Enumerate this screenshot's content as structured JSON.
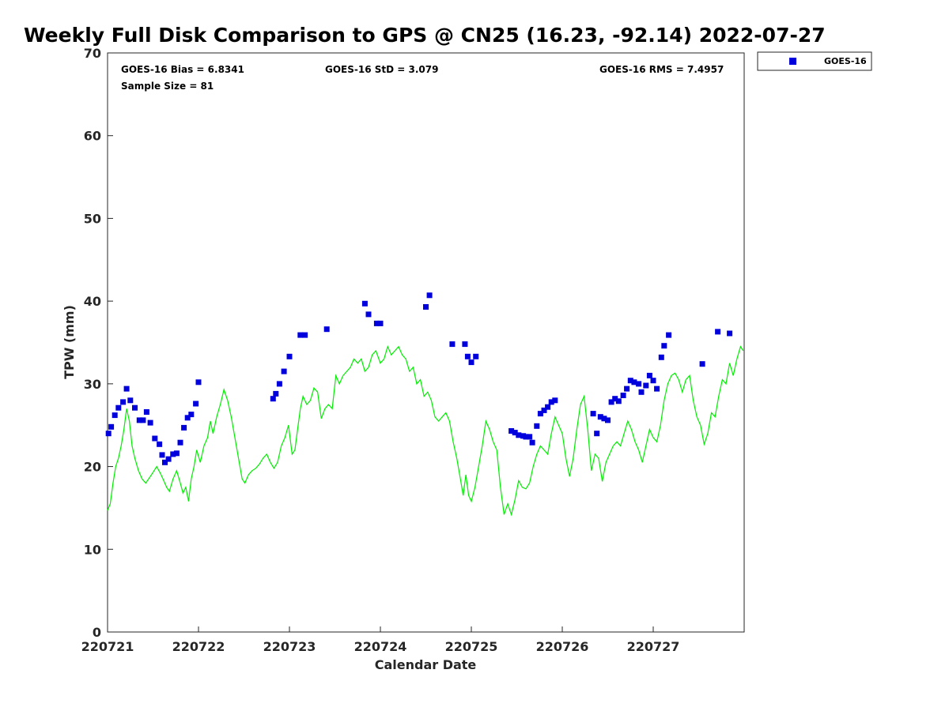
{
  "title": "Weekly Full Disk Comparison to GPS @ CN25 (16.23, -92.14) 2022-07-27",
  "stats": {
    "bias": "GOES-16 Bias = 6.8341",
    "std": "GOES-16 StD = 3.079",
    "rms": "GOES-16 RMS = 7.4957",
    "sample": "Sample Size = 81"
  },
  "legend": {
    "label": "GOES-16"
  },
  "colors": {
    "goes": "#0000dd",
    "gps": "#00ee00",
    "axis": "#262626"
  },
  "chart_data": {
    "type": "scatter",
    "title": "Weekly Full Disk Comparison to GPS @ CN25 (16.23, -92.14) 2022-07-27",
    "xlabel": "Calendar Date",
    "ylabel": "TPW (mm)",
    "xlim": [
      220721,
      220728
    ],
    "ylim": [
      0,
      70
    ],
    "yticks": [
      0,
      10,
      20,
      30,
      40,
      50,
      60,
      70
    ],
    "xticks": [
      {
        "value": 220721,
        "label": "220721"
      },
      {
        "value": 220722,
        "label": "220722"
      },
      {
        "value": 220723,
        "label": "220723"
      },
      {
        "value": 220724,
        "label": "220724"
      },
      {
        "value": 220725,
        "label": "220725"
      },
      {
        "value": 220726,
        "label": "220726"
      },
      {
        "value": 220727,
        "label": "220727"
      }
    ],
    "legend_position": "top-right",
    "grid": false,
    "series": [
      {
        "name": "GOES-16",
        "marker": "square",
        "color": "#0000dd",
        "points": [
          [
            220721.01,
            24.0
          ],
          [
            220721.04,
            24.8
          ],
          [
            220721.08,
            26.2
          ],
          [
            220721.12,
            27.1
          ],
          [
            220721.17,
            27.8
          ],
          [
            220721.21,
            29.4
          ],
          [
            220721.25,
            28.0
          ],
          [
            220721.3,
            27.1
          ],
          [
            220721.35,
            25.6
          ],
          [
            220721.39,
            25.6
          ],
          [
            220721.43,
            26.6
          ],
          [
            220721.47,
            25.3
          ],
          [
            220721.52,
            23.4
          ],
          [
            220721.57,
            22.7
          ],
          [
            220721.6,
            21.4
          ],
          [
            220721.63,
            20.5
          ],
          [
            220721.67,
            20.9
          ],
          [
            220721.72,
            21.5
          ],
          [
            220721.76,
            21.6
          ],
          [
            220721.8,
            22.9
          ],
          [
            220721.84,
            24.7
          ],
          [
            220721.88,
            25.9
          ],
          [
            220721.92,
            26.3
          ],
          [
            220721.97,
            27.6
          ],
          [
            220722.0,
            30.2
          ],
          [
            220722.82,
            28.2
          ],
          [
            220722.85,
            28.8
          ],
          [
            220722.89,
            30.0
          ],
          [
            220722.94,
            31.5
          ],
          [
            220723.0,
            33.3
          ],
          [
            220723.12,
            35.9
          ],
          [
            220723.17,
            35.9
          ],
          [
            220723.41,
            36.6
          ],
          [
            220723.83,
            39.7
          ],
          [
            220723.87,
            38.4
          ],
          [
            220723.96,
            37.3
          ],
          [
            220724.0,
            37.3
          ],
          [
            220724.5,
            39.3
          ],
          [
            220724.54,
            40.7
          ],
          [
            220724.79,
            34.8
          ],
          [
            220724.93,
            34.8
          ],
          [
            220724.96,
            33.3
          ],
          [
            220725.0,
            32.6
          ],
          [
            220725.05,
            33.3
          ],
          [
            220725.44,
            24.3
          ],
          [
            220725.48,
            24.1
          ],
          [
            220725.52,
            23.8
          ],
          [
            220725.57,
            23.7
          ],
          [
            220725.6,
            23.6
          ],
          [
            220725.64,
            23.6
          ],
          [
            220725.67,
            22.9
          ],
          [
            220725.72,
            24.9
          ],
          [
            220725.76,
            26.4
          ],
          [
            220725.8,
            26.8
          ],
          [
            220725.84,
            27.2
          ],
          [
            220725.88,
            27.8
          ],
          [
            220725.92,
            28.0
          ],
          [
            220726.34,
            26.4
          ],
          [
            220726.38,
            24.0
          ],
          [
            220726.42,
            26.0
          ],
          [
            220726.46,
            25.8
          ],
          [
            220726.5,
            25.6
          ],
          [
            220726.54,
            27.8
          ],
          [
            220726.58,
            28.2
          ],
          [
            220726.62,
            27.9
          ],
          [
            220726.67,
            28.6
          ],
          [
            220726.71,
            29.4
          ],
          [
            220726.75,
            30.4
          ],
          [
            220726.79,
            30.2
          ],
          [
            220726.84,
            30.0
          ],
          [
            220726.87,
            29.0
          ],
          [
            220726.92,
            29.8
          ],
          [
            220726.96,
            31.0
          ],
          [
            220727.0,
            30.4
          ],
          [
            220727.04,
            29.4
          ],
          [
            220727.09,
            33.2
          ],
          [
            220727.12,
            34.6
          ],
          [
            220727.17,
            35.9
          ],
          [
            220727.54,
            32.4
          ],
          [
            220727.71,
            36.3
          ],
          [
            220727.84,
            36.1
          ]
        ]
      },
      {
        "name": "GPS",
        "marker": "line",
        "color": "#00ee00",
        "points": [
          [
            220721.0,
            14.7
          ],
          [
            220721.03,
            15.5
          ],
          [
            220721.06,
            18.0
          ],
          [
            220721.09,
            20.0
          ],
          [
            220721.12,
            21.0
          ],
          [
            220721.15,
            22.5
          ],
          [
            220721.18,
            24.5
          ],
          [
            220721.21,
            27.0
          ],
          [
            220721.24,
            25.5
          ],
          [
            220721.27,
            22.5
          ],
          [
            220721.3,
            21.0
          ],
          [
            220721.34,
            19.5
          ],
          [
            220721.38,
            18.5
          ],
          [
            220721.42,
            18.0
          ],
          [
            220721.47,
            18.8
          ],
          [
            220721.5,
            19.3
          ],
          [
            220721.54,
            20.0
          ],
          [
            220721.58,
            19.2
          ],
          [
            220721.61,
            18.5
          ],
          [
            220721.65,
            17.5
          ],
          [
            220721.68,
            17.0
          ],
          [
            220721.72,
            18.5
          ],
          [
            220721.76,
            19.5
          ],
          [
            220721.8,
            18.0
          ],
          [
            220721.83,
            16.8
          ],
          [
            220721.86,
            17.5
          ],
          [
            220721.89,
            15.8
          ],
          [
            220721.92,
            18.5
          ],
          [
            220721.95,
            20.0
          ],
          [
            220721.98,
            22.0
          ],
          [
            220722.02,
            20.5
          ],
          [
            220722.06,
            22.5
          ],
          [
            220722.1,
            23.5
          ],
          [
            220722.13,
            25.5
          ],
          [
            220722.16,
            24.0
          ],
          [
            220722.2,
            26.0
          ],
          [
            220722.24,
            27.5
          ],
          [
            220722.28,
            29.3
          ],
          [
            220722.32,
            28.0
          ],
          [
            220722.36,
            26.0
          ],
          [
            220722.4,
            23.5
          ],
          [
            220722.44,
            21.0
          ],
          [
            220722.48,
            18.5
          ],
          [
            220722.51,
            18.0
          ],
          [
            220722.55,
            19.0
          ],
          [
            220722.59,
            19.5
          ],
          [
            220722.63,
            19.8
          ],
          [
            220722.67,
            20.3
          ],
          [
            220722.71,
            21.0
          ],
          [
            220722.75,
            21.5
          ],
          [
            220722.79,
            20.5
          ],
          [
            220722.83,
            19.8
          ],
          [
            220722.87,
            20.5
          ],
          [
            220722.91,
            22.5
          ],
          [
            220722.95,
            23.5
          ],
          [
            220722.99,
            25.0
          ],
          [
            220723.03,
            21.5
          ],
          [
            220723.06,
            22.0
          ],
          [
            220723.09,
            24.5
          ],
          [
            220723.12,
            27.0
          ],
          [
            220723.15,
            28.5
          ],
          [
            220723.19,
            27.5
          ],
          [
            220723.23,
            28.0
          ],
          [
            220723.27,
            29.5
          ],
          [
            220723.31,
            29.0
          ],
          [
            220723.35,
            25.8
          ],
          [
            220723.39,
            27.0
          ],
          [
            220723.43,
            27.5
          ],
          [
            220723.47,
            27.0
          ],
          [
            220723.51,
            31.0
          ],
          [
            220723.55,
            30.0
          ],
          [
            220723.59,
            31.0
          ],
          [
            220723.63,
            31.5
          ],
          [
            220723.67,
            32.0
          ],
          [
            220723.71,
            33.0
          ],
          [
            220723.75,
            32.5
          ],
          [
            220723.79,
            33.0
          ],
          [
            220723.83,
            31.5
          ],
          [
            220723.87,
            32.0
          ],
          [
            220723.91,
            33.5
          ],
          [
            220723.95,
            34.0
          ],
          [
            220724.0,
            32.5
          ],
          [
            220724.04,
            33.0
          ],
          [
            220724.08,
            34.5
          ],
          [
            220724.12,
            33.5
          ],
          [
            220724.16,
            34.0
          ],
          [
            220724.2,
            34.5
          ],
          [
            220724.24,
            33.5
          ],
          [
            220724.28,
            33.0
          ],
          [
            220724.32,
            31.5
          ],
          [
            220724.36,
            32.0
          ],
          [
            220724.4,
            30.0
          ],
          [
            220724.44,
            30.5
          ],
          [
            220724.48,
            28.5
          ],
          [
            220724.52,
            29.0
          ],
          [
            220724.56,
            28.0
          ],
          [
            220724.6,
            26.0
          ],
          [
            220724.64,
            25.5
          ],
          [
            220724.68,
            26.0
          ],
          [
            220724.72,
            26.5
          ],
          [
            220724.76,
            25.5
          ],
          [
            220724.8,
            23.0
          ],
          [
            220724.84,
            21.0
          ],
          [
            220724.88,
            18.5
          ],
          [
            220724.91,
            16.5
          ],
          [
            220724.94,
            19.0
          ],
          [
            220724.97,
            16.5
          ],
          [
            220725.0,
            15.8
          ],
          [
            220725.04,
            17.5
          ],
          [
            220725.08,
            20.0
          ],
          [
            220725.12,
            22.5
          ],
          [
            220725.16,
            25.5
          ],
          [
            220725.2,
            24.5
          ],
          [
            220725.24,
            23.0
          ],
          [
            220725.28,
            22.0
          ],
          [
            220725.32,
            17.5
          ],
          [
            220725.36,
            14.2
          ],
          [
            220725.4,
            15.5
          ],
          [
            220725.44,
            14.2
          ],
          [
            220725.48,
            16.0
          ],
          [
            220725.52,
            18.3
          ],
          [
            220725.56,
            17.5
          ],
          [
            220725.6,
            17.3
          ],
          [
            220725.64,
            18.0
          ],
          [
            220725.68,
            20.0
          ],
          [
            220725.72,
            21.5
          ],
          [
            220725.76,
            22.5
          ],
          [
            220725.8,
            22.0
          ],
          [
            220725.84,
            21.5
          ],
          [
            220725.88,
            24.0
          ],
          [
            220725.92,
            26.0
          ],
          [
            220725.96,
            25.0
          ],
          [
            220726.0,
            24.0
          ],
          [
            220726.04,
            21.0
          ],
          [
            220726.08,
            18.8
          ],
          [
            220726.12,
            21.0
          ],
          [
            220726.16,
            24.5
          ],
          [
            220726.2,
            27.5
          ],
          [
            220726.24,
            28.5
          ],
          [
            220726.28,
            24.5
          ],
          [
            220726.32,
            19.5
          ],
          [
            220726.36,
            21.5
          ],
          [
            220726.4,
            21.0
          ],
          [
            220726.44,
            18.2
          ],
          [
            220726.48,
            20.5
          ],
          [
            220726.52,
            21.5
          ],
          [
            220726.56,
            22.5
          ],
          [
            220726.6,
            23.0
          ],
          [
            220726.64,
            22.5
          ],
          [
            220726.68,
            24.0
          ],
          [
            220726.72,
            25.5
          ],
          [
            220726.76,
            24.5
          ],
          [
            220726.8,
            23.0
          ],
          [
            220726.84,
            22.0
          ],
          [
            220726.88,
            20.5
          ],
          [
            220726.92,
            22.5
          ],
          [
            220726.96,
            24.5
          ],
          [
            220727.0,
            23.5
          ],
          [
            220727.04,
            23.0
          ],
          [
            220727.08,
            25.0
          ],
          [
            220727.12,
            28.0
          ],
          [
            220727.16,
            30.0
          ],
          [
            220727.2,
            31.0
          ],
          [
            220727.24,
            31.3
          ],
          [
            220727.28,
            30.5
          ],
          [
            220727.32,
            29.0
          ],
          [
            220727.36,
            30.5
          ],
          [
            220727.4,
            31.0
          ],
          [
            220727.44,
            28.0
          ],
          [
            220727.48,
            26.0
          ],
          [
            220727.52,
            25.0
          ],
          [
            220727.56,
            22.7
          ],
          [
            220727.6,
            24.0
          ],
          [
            220727.64,
            26.5
          ],
          [
            220727.68,
            26.0
          ],
          [
            220727.72,
            28.5
          ],
          [
            220727.76,
            30.5
          ],
          [
            220727.8,
            30.0
          ],
          [
            220727.84,
            32.5
          ],
          [
            220727.88,
            31.0
          ],
          [
            220727.92,
            33.0
          ],
          [
            220727.96,
            34.5
          ],
          [
            220727.99,
            34.0
          ]
        ]
      }
    ]
  }
}
